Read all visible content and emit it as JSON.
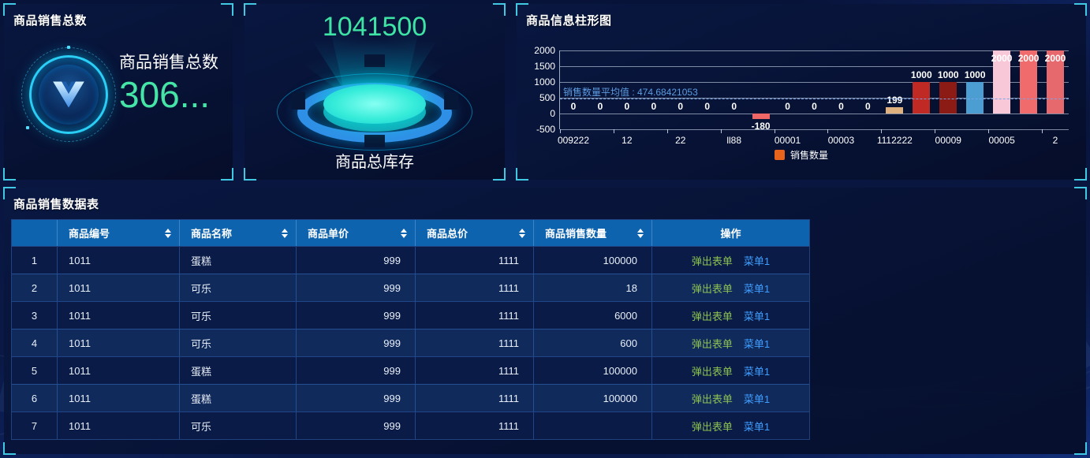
{
  "panel_sales_total": {
    "title": "商品销售总数",
    "card_label": "商品销售总数",
    "card_value": "306..."
  },
  "panel_inventory": {
    "value": "1041500",
    "label": "商品总库存"
  },
  "panel_chart": {
    "title": "商品信息柱形图"
  },
  "panel_table": {
    "title": "商品销售数据表"
  },
  "chart_data": {
    "type": "bar",
    "title": "商品信息柱形图",
    "values": [
      0,
      0,
      0,
      0,
      0,
      0,
      0,
      -180,
      0,
      0,
      0,
      0,
      199,
      1000,
      1000,
      1000,
      2000,
      2000,
      2000
    ],
    "bar_colors": [
      "",
      "",
      "",
      "",
      "",
      "",
      "",
      "#ee6666",
      "",
      "",
      "",
      "",
      "#dfb17f",
      "#bf2b24",
      "#8c1a15",
      "#4c9ed2",
      "#f8c8d8",
      "#f06b6b",
      "#e6696d"
    ],
    "visible_tick_labels": [
      "009222",
      "12",
      "22",
      "ll88",
      "00001",
      "00003",
      "1112222",
      "00009",
      "00005",
      "2"
    ],
    "y_ticks": [
      2000,
      1500,
      1000,
      500,
      0,
      -500
    ],
    "y_min": -500,
    "y_max": 2000,
    "grid": true,
    "average_line": {
      "value": 474.68421053,
      "label": "销售数量平均值 : 474.68421053",
      "color": "#5d9ce0"
    },
    "legend": {
      "label": "销售数量",
      "color": "#e8641c",
      "position": "bottom-center"
    }
  },
  "table": {
    "columns": [
      {
        "label": "",
        "sortable": false
      },
      {
        "label": "商品编号",
        "sortable": true
      },
      {
        "label": "商品名称",
        "sortable": true
      },
      {
        "label": "商品单价",
        "sortable": true
      },
      {
        "label": "商品总价",
        "sortable": true
      },
      {
        "label": "商品销售数量",
        "sortable": true
      },
      {
        "label": "操作",
        "sortable": false
      }
    ],
    "action_labels": {
      "popup": "弹出表单",
      "menu": "菜单1"
    },
    "rows": [
      {
        "no": "1",
        "code": "1011",
        "name": "蛋糕",
        "price": "999",
        "total": "1111",
        "qty": "100000"
      },
      {
        "no": "2",
        "code": "1011",
        "name": "可乐",
        "price": "999",
        "total": "1111",
        "qty": "18"
      },
      {
        "no": "3",
        "code": "1011",
        "name": "可乐",
        "price": "999",
        "total": "1111",
        "qty": "6000"
      },
      {
        "no": "4",
        "code": "1011",
        "name": "可乐",
        "price": "999",
        "total": "1111",
        "qty": "600"
      },
      {
        "no": "5",
        "code": "1011",
        "name": "蛋糕",
        "price": "999",
        "total": "1111",
        "qty": "100000"
      },
      {
        "no": "6",
        "code": "1011",
        "name": "蛋糕",
        "price": "999",
        "total": "1111",
        "qty": "100000"
      },
      {
        "no": "7",
        "code": "1011",
        "name": "可乐",
        "price": "999",
        "total": "1111",
        "qty": ""
      }
    ]
  }
}
